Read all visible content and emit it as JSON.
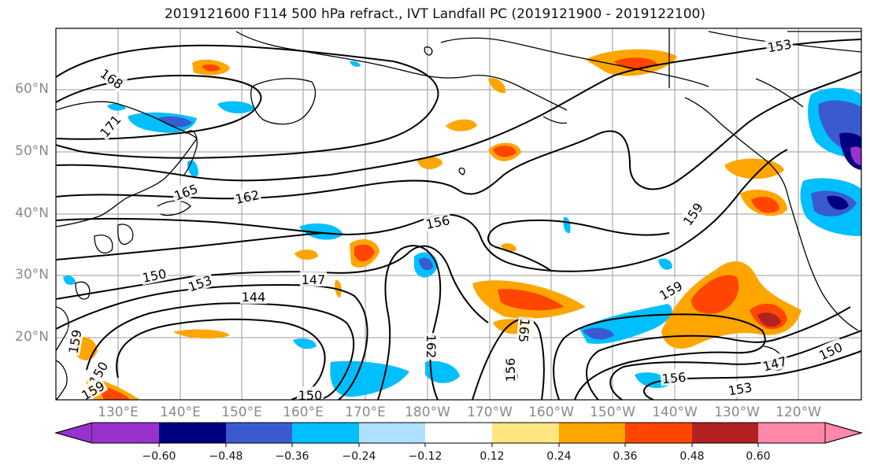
{
  "title": "2019121600 F114 500 hPa refract., IVT Landfall PC (2019121900 - 2019122100)",
  "lat_labels": [
    "60°N",
    "50°N",
    "40°N",
    "30°N",
    "20°N"
  ],
  "lon_labels": [
    "130°E",
    "140°E",
    "150°E",
    "160°E",
    "170°E",
    "180°W",
    "170°W",
    "160°W",
    "150°W",
    "140°W",
    "130°W",
    "120°W"
  ],
  "contour_labels": [
    "168",
    "171",
    "165",
    "162",
    "156",
    "159",
    "153",
    "150",
    "147",
    "144",
    "150",
    "159",
    "162",
    "165",
    "156",
    "153",
    "150",
    "147",
    "159",
    "156",
    "153",
    "150",
    "159"
  ],
  "colorbar": {
    "tick_labels": [
      "−0.60",
      "−0.48",
      "−0.36",
      "−0.24",
      "−0.12",
      "0.12",
      "0.24",
      "0.36",
      "0.48",
      "0.60"
    ],
    "colors": [
      "#9932CC",
      "#000080",
      "#3A5BCF",
      "#00BFFF",
      "#B0E0FF",
      "#FFFFFF",
      "#FFE680",
      "#FFA500",
      "#FF4500",
      "#B22222",
      "#FF88AA"
    ]
  }
}
